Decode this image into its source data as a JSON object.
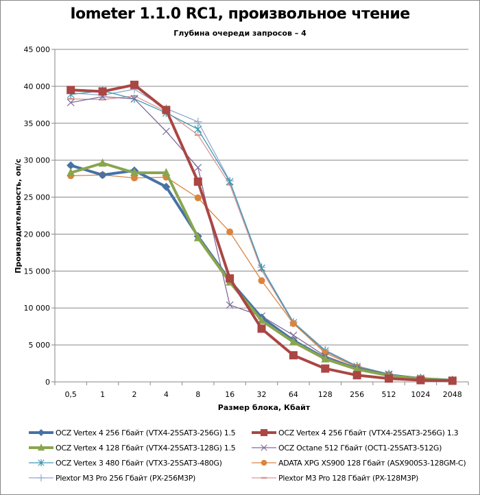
{
  "chart_data": {
    "type": "line",
    "title": "Iometer 1.1.0 RC1, произвольное чтение",
    "subtitle": "Глубина очереди запросов – 4",
    "xlabel": "Размер блока, Кбайт",
    "ylabel": "Производительность, оп/с",
    "x": [
      "0,5",
      "1",
      "2",
      "4",
      "8",
      "16",
      "32",
      "64",
      "128",
      "256",
      "512",
      "1024",
      "2048"
    ],
    "ylim": [
      0,
      45000
    ],
    "yticks": [
      0,
      5000,
      10000,
      15000,
      20000,
      25000,
      30000,
      35000,
      40000,
      45000
    ],
    "ytick_labels": [
      "0",
      "5 000",
      "10 000",
      "15 000",
      "20 000",
      "25 000",
      "30 000",
      "35 000",
      "40 000",
      "45 000"
    ],
    "grid": "horizontal",
    "legend_position": "bottom",
    "series": [
      {
        "name": "OCZ Vertex  4 256 Гбайт (VTX4-25SAT3-256G) 1.5",
        "color": "#4572A7",
        "marker": "diamond",
        "width": "thick",
        "values": [
          29300,
          28000,
          28600,
          26400,
          19700,
          13700,
          8700,
          5600,
          3200,
          1800,
          900,
          450,
          220
        ]
      },
      {
        "name": "OCZ Vertex  4 256 Гбайт (VTX4-25SAT3-256G) 1.3",
        "color": "#AA4643",
        "marker": "square",
        "width": "thick",
        "values": [
          39500,
          39300,
          40200,
          36800,
          27100,
          14000,
          7200,
          3600,
          1800,
          900,
          450,
          230,
          150
        ]
      },
      {
        "name": "OCZ Vertex  4 128 Гбайт (VTX4-25SAT3-128G) 1.5",
        "color": "#89A54E",
        "marker": "triangle",
        "width": "thick",
        "values": [
          28300,
          29600,
          28300,
          28300,
          19500,
          13500,
          8300,
          5400,
          3100,
          1700,
          850,
          420,
          200
        ]
      },
      {
        "name": "OCZ Octane 512 Гбайт (OCT1-25SAT3-512G)",
        "color": "#80699B",
        "marker": "x",
        "width": "thin",
        "values": [
          37800,
          38600,
          38300,
          33900,
          29000,
          10400,
          8900,
          6300,
          3500,
          1900,
          950,
          480,
          240
        ]
      },
      {
        "name": "OCZ Vertex  3 480 Гбайт (VTX3-25SAT3-480G)",
        "color": "#3D96AE",
        "marker": "star",
        "width": "thin",
        "values": [
          38900,
          39400,
          38300,
          36400,
          34200,
          27100,
          15400,
          8000,
          4200,
          2100,
          1050,
          520,
          260
        ]
      },
      {
        "name": "ADATA  XPG XS900 128 Гбайт (ASX900S3-128GM-C)",
        "color": "#DB843D",
        "marker": "circle",
        "width": "thin",
        "values": [
          27900,
          28000,
          27600,
          27700,
          24900,
          20300,
          13700,
          7900,
          3900,
          2000,
          1000,
          500,
          250
        ]
      },
      {
        "name": "Plextor M3 Pro 256 Гбайт (PX-256M3P)",
        "color": "#92A8CD",
        "marker": "plus",
        "width": "thin",
        "values": [
          39100,
          38800,
          39600,
          37000,
          35200,
          27200,
          15500,
          8100,
          4300,
          2150,
          1080,
          540,
          270
        ]
      },
      {
        "name": "Plextor M3 Pro 128 Гбайт (PX-128M3P)",
        "color": "#D99694",
        "marker": "dash",
        "width": "thin",
        "values": [
          38300,
          38200,
          38700,
          36600,
          33400,
          26700,
          15100,
          7900,
          4100,
          2050,
          1030,
          510,
          260
        ]
      }
    ]
  }
}
